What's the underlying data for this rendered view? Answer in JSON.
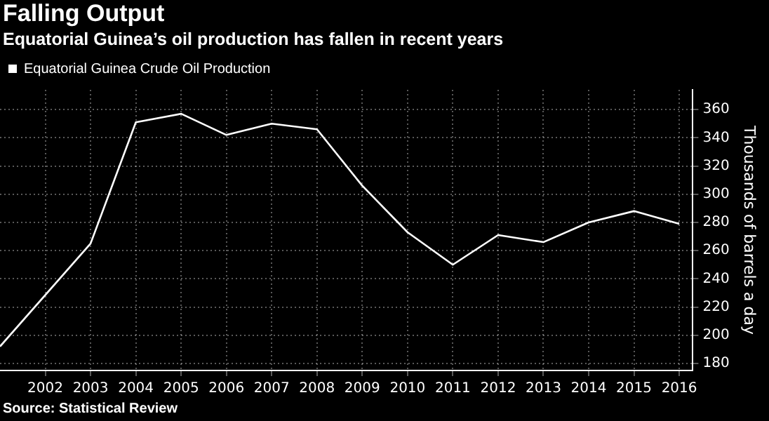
{
  "chart_data": {
    "type": "line",
    "title": "Falling Output",
    "subtitle": "Equatorial Guinea’s oil production has fallen in recent years",
    "ylabel": "Thousands of barrels a day",
    "x": [
      2001,
      2003,
      2004,
      2005,
      2006,
      2007,
      2008,
      2009,
      2010,
      2011,
      2012,
      2013,
      2014,
      2015,
      2016
    ],
    "series": [
      {
        "name": "Equatorial Guinea Crude Oil Production",
        "color": "#ffffff",
        "values": [
          192,
          265,
          351,
          357,
          342,
          350,
          346,
          306,
          273,
          250,
          271,
          266,
          280,
          288,
          279
        ]
      }
    ],
    "xlim": [
      2001,
      2016.3
    ],
    "xticks": [
      2002,
      2003,
      2004,
      2005,
      2006,
      2007,
      2008,
      2009,
      2010,
      2011,
      2012,
      2013,
      2014,
      2015,
      2016
    ],
    "ylim": [
      175,
      374
    ],
    "yticks": [
      180,
      200,
      220,
      240,
      260,
      280,
      300,
      320,
      340,
      360
    ],
    "grid": true,
    "legend": "top left",
    "marker": "none",
    "line_style": "solid",
    "annotations": [
      "Source: Statistical Review"
    ]
  }
}
